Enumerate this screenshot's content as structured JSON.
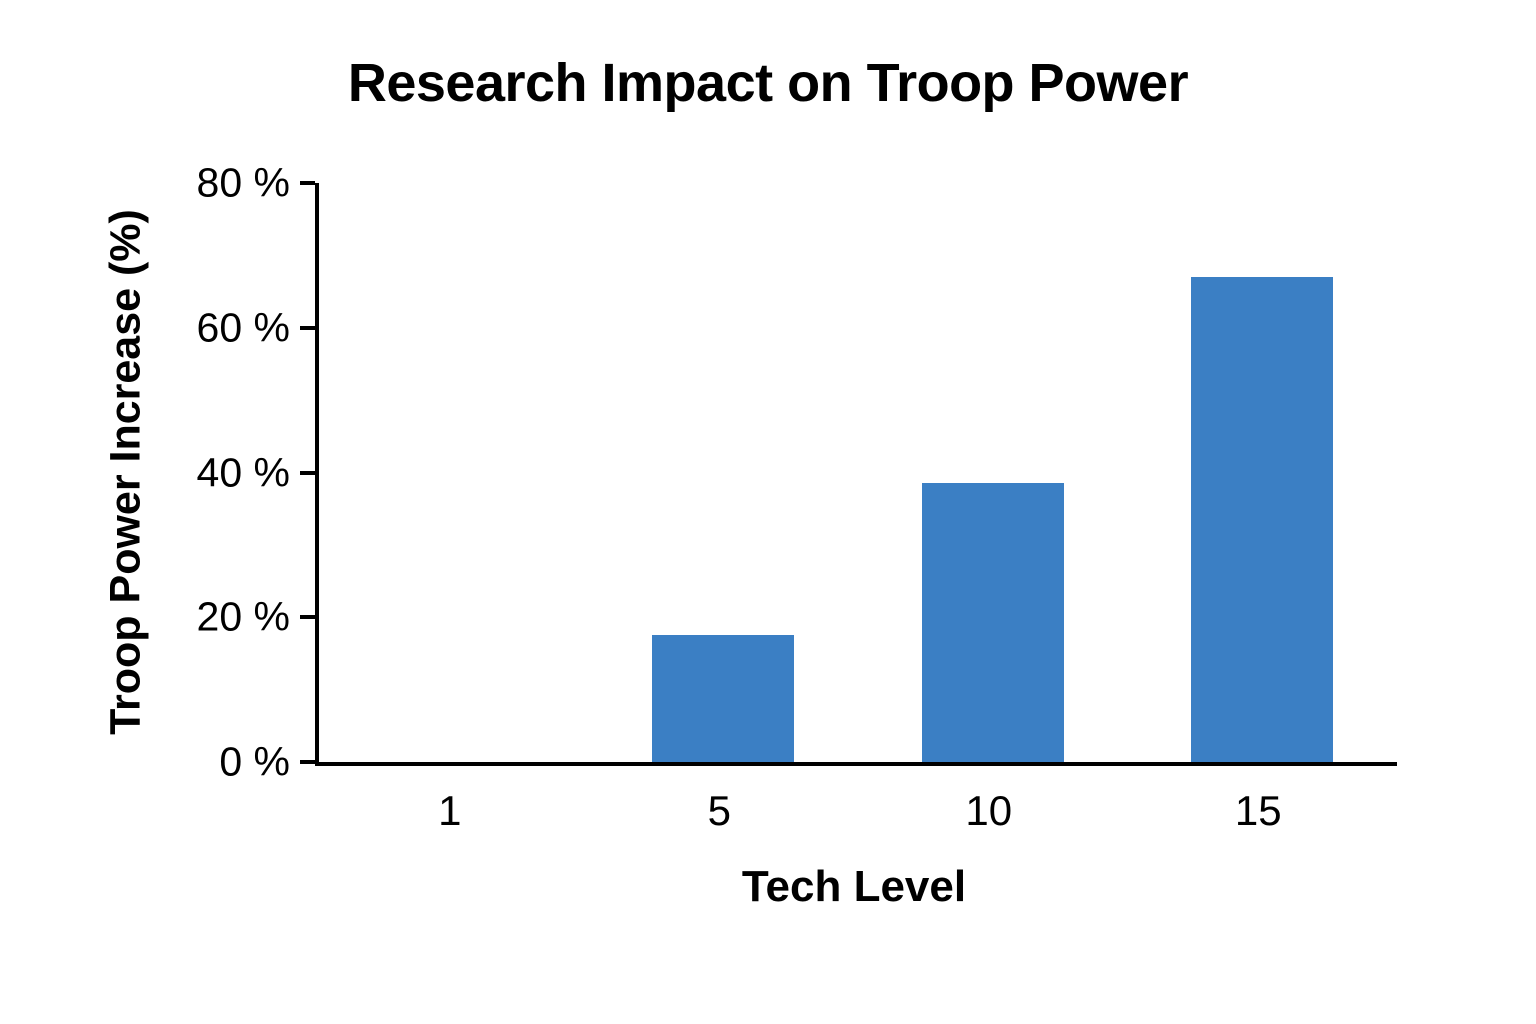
{
  "chart_data": {
    "type": "bar",
    "title": "Research Impact on Troop Power",
    "xlabel": "Tech Level",
    "ylabel": "Troop Power Increase (%)",
    "categories": [
      "1",
      "5",
      "10",
      "15"
    ],
    "values": [
      0,
      17.5,
      38.5,
      67
    ],
    "ylim": [
      0,
      80
    ],
    "yticks": [
      0,
      20,
      40,
      60,
      80
    ],
    "ytick_labels": [
      "0 %",
      "20 %",
      "40 %",
      "60 %",
      "80 %"
    ],
    "bar_color": "#3b7fc4",
    "axis_color": "#000000",
    "text_color": "#000000",
    "grid": false,
    "legend": "none"
  }
}
